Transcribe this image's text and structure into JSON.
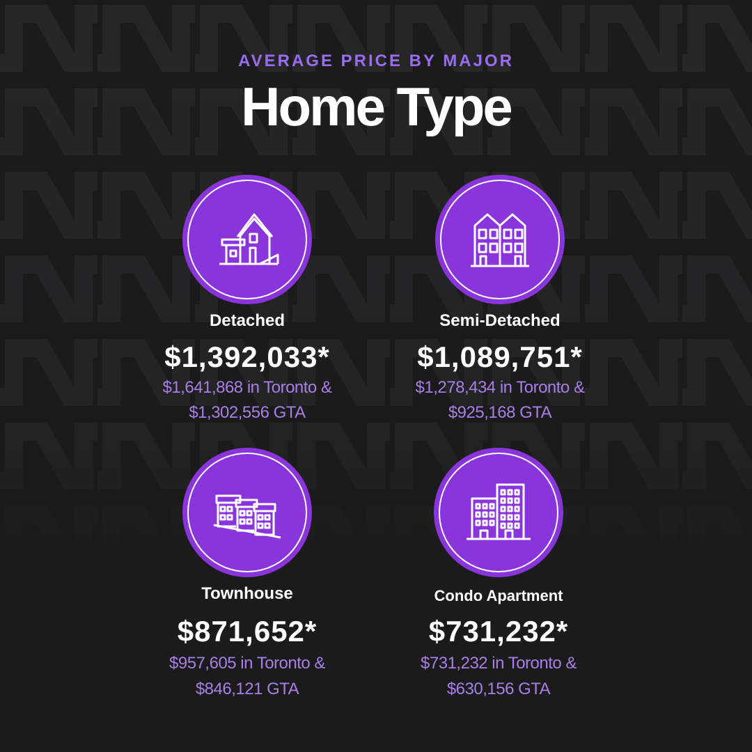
{
  "header": {
    "kicker": "AVERAGE PRICE BY MAJOR",
    "title": "Home Type"
  },
  "colors": {
    "background": "#1b1b1c",
    "accent_purple": "#8a34dc",
    "subtext_purple": "#a77fe6",
    "kicker_purple": "#9a6cf0",
    "white": "#ffffff"
  },
  "cards": [
    {
      "icon": "detached-house-icon",
      "label": "Detached",
      "price": "$1,392,033*",
      "line1": "$1,641,868  in Toronto &",
      "line2": "$1,302,556 GTA"
    },
    {
      "icon": "semi-detached-house-icon",
      "label": "Semi-Detached",
      "price": "$1,089,751*",
      "line1": "$1,278,434  in Toronto &",
      "line2": "$925,168 GTA"
    },
    {
      "icon": "townhouse-icon",
      "label": "Townhouse",
      "price": "$871,652*",
      "line1": "$957,605 in Toronto &",
      "line2": "$846,121 GTA"
    },
    {
      "icon": "condo-apartment-icon",
      "label": "Condo Apartment",
      "price": "$731,232*",
      "line1": "$731,232  in Toronto &",
      "line2": "$630,156  GTA"
    }
  ]
}
